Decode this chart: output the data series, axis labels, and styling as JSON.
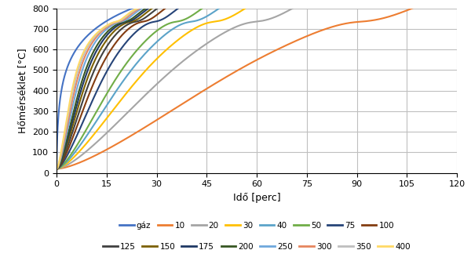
{
  "title": "",
  "xlabel": "Idő [perc]",
  "ylabel": "Hőmérséklet [°C]",
  "xlim": [
    0,
    120
  ],
  "ylim": [
    0,
    800
  ],
  "xticks": [
    0,
    15,
    30,
    45,
    60,
    75,
    90,
    105,
    120
  ],
  "yticks": [
    0,
    100,
    200,
    300,
    400,
    500,
    600,
    700,
    800
  ],
  "series": [
    {
      "label": "gáz",
      "AmV": 0,
      "color": "#4472C4"
    },
    {
      "label": "10",
      "AmV": 10,
      "color": "#ED7D31"
    },
    {
      "label": "20",
      "AmV": 20,
      "color": "#A5A5A5"
    },
    {
      "label": "30",
      "AmV": 30,
      "color": "#FFC000"
    },
    {
      "label": "40",
      "AmV": 40,
      "color": "#5BA3C9"
    },
    {
      "label": "50",
      "AmV": 50,
      "color": "#70AD47"
    },
    {
      "label": "75",
      "AmV": 75,
      "color": "#264478"
    },
    {
      "label": "100",
      "AmV": 100,
      "color": "#833C11"
    },
    {
      "label": "125",
      "AmV": 125,
      "color": "#404040"
    },
    {
      "label": "150",
      "AmV": 150,
      "color": "#7B6000"
    },
    {
      "label": "175",
      "AmV": 175,
      "color": "#1F3864"
    },
    {
      "label": "200",
      "AmV": 200,
      "color": "#375623"
    },
    {
      "label": "250",
      "AmV": 250,
      "color": "#6FA8DC"
    },
    {
      "label": "300",
      "AmV": 300,
      "color": "#E6855E"
    },
    {
      "label": "350",
      "AmV": 350,
      "color": "#BFBFBF"
    },
    {
      "label": "400",
      "AmV": 400,
      "color": "#FFD966"
    }
  ],
  "background_color": "#FFFFFF",
  "grid_color": "#BFBFBF"
}
